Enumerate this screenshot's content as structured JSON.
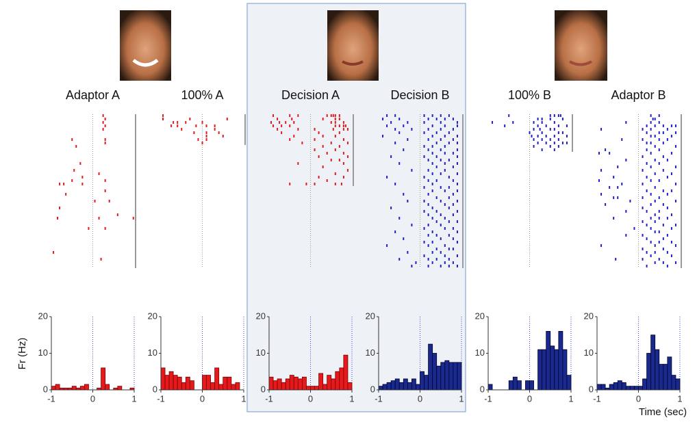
{
  "chart_data": {
    "type": "raster-histogram",
    "ylabel": "Fr (Hz)",
    "xlabel": "Time (sec)",
    "xlim": [
      -1,
      1
    ],
    "xticks": [
      -1,
      0,
      1
    ],
    "ylim": [
      0,
      20
    ],
    "yticks": [
      0,
      10,
      20
    ],
    "bins": [
      -1,
      -0.9,
      -0.8,
      -0.7,
      -0.6,
      -0.5,
      -0.4,
      -0.3,
      -0.2,
      -0.1,
      0,
      0.1,
      0.2,
      0.3,
      0.4,
      0.5,
      0.6,
      0.7,
      0.8,
      0.9,
      1
    ],
    "panels": [
      {
        "title": "Adaptor A",
        "color": "#e41a1c",
        "values": [
          1,
          1.5,
          0.5,
          0.5,
          0.5,
          1,
          0.5,
          1,
          1.5,
          0,
          0,
          0.5,
          6,
          1.5,
          0,
          0.5,
          1,
          0,
          0,
          0.5
        ],
        "raster": [
          [
            0.25
          ],
          [
            0.3
          ],
          [
            0.25
          ],
          [
            0.3
          ],
          [
            0.25
          ],
          [],
          [],
          [
            -0.5,
            0.3
          ],
          [
            0.3
          ],
          [
            -0.4
          ],
          [],
          [],
          [],
          [],
          [
            -0.3
          ],
          [],
          [
            -0.45
          ],
          [
            0.15
          ],
          [
            -0.25
          ],
          [
            -0.5,
            0.3
          ],
          [
            -0.8,
            -0.7,
            -0.25
          ],
          [],
          [
            0.3
          ],
          [
            -0.65
          ],
          [],
          [
            0.05,
            0.4
          ],
          [],
          [
            -0.8
          ],
          [],
          [
            0.6
          ],
          [
            -0.85,
            -0.85,
            0.15,
            0.98
          ],
          [],
          [],
          [
            -0.1,
            0.3
          ],
          [],
          [],
          [],
          [],
          [],
          [],
          [
            -0.95
          ],
          [],
          [
            0.2
          ],
          [],
          []
        ]
      },
      {
        "title": "100% A",
        "color": "#e41a1c",
        "values": [
          6,
          4,
          5,
          4,
          3.5,
          2,
          3.5,
          2.5,
          0,
          0,
          4,
          4,
          2,
          6,
          1.5,
          3.5,
          3.5,
          1.5,
          2,
          0
        ],
        "raster": [
          [
            -0.95
          ],
          [
            -0.95,
            -0.3,
            0.6
          ],
          [
            -0.7,
            -0.6,
            -0.4,
            0
          ],
          [
            -0.75,
            -0.6,
            -0.15,
            0.1,
            0.3
          ],
          [
            -0.5,
            0.3
          ],
          [
            -0.2,
            0.1,
            0.4
          ],
          [
            0.1,
            0.5
          ],
          [
            -0.1,
            0.1
          ],
          [
            0
          ]
        ]
      },
      {
        "title": "Decision A",
        "color": "#e41a1c",
        "values": [
          3.5,
          2.5,
          3,
          2,
          3,
          4,
          3.5,
          3,
          3.5,
          1,
          1,
          1,
          4.5,
          1.5,
          4,
          3,
          5,
          6,
          9.5,
          2
        ],
        "raster": [
          [
            -0.9,
            -0.5,
            -0.3,
            0.4,
            0.5,
            0.55,
            0.6,
            0.7
          ],
          [
            -0.8,
            -0.45,
            0.3,
            0.6,
            0.7
          ],
          [
            -0.95,
            -0.75,
            -0.6,
            -0.4,
            0.5,
            0.6,
            0.8
          ],
          [
            -0.9,
            -0.7,
            -0.5,
            0.6,
            0.7,
            0.8,
            0.85
          ],
          [
            -0.8,
            -0.3,
            0.1,
            0.55,
            0.8,
            0.9
          ],
          [
            -0.7,
            0.2,
            0.7
          ],
          [
            -0.4,
            0.3,
            0.6
          ],
          [
            -0.5,
            0.1,
            0.8
          ],
          [
            -0.2,
            0.5,
            0.9
          ],
          [
            0.3,
            0.7
          ],
          [
            0.1,
            0.6
          ],
          [
            0.4,
            0.8
          ],
          [
            0.2,
            0.9
          ],
          [
            0.5,
            0.7
          ],
          [
            -0.3,
            0.8
          ],
          [
            0.3
          ],
          [
            0.9
          ],
          [
            0.6
          ],
          [
            0.2,
            0.8
          ],
          [
            0.4
          ],
          [
            -0.5,
            -0.1,
            0.1,
            0.6,
            0.75
          ]
        ]
      },
      {
        "title": "Decision B",
        "color": "#1f1fd1",
        "values": [
          1,
          1.5,
          2,
          2.5,
          3,
          2,
          3,
          2,
          3,
          1.5,
          5,
          4,
          12.5,
          10,
          6.5,
          7.5,
          8,
          7.5,
          7.5,
          7.5
        ],
        "raster": [
          [
            -0.8,
            -0.6,
            0.1,
            0.3,
            0.5,
            0.7
          ],
          [
            -0.9,
            -0.5,
            0.2,
            0.4,
            0.6,
            0.8
          ],
          [
            -0.7,
            -0.3,
            0.1,
            0.5,
            0.9
          ],
          [
            -0.8,
            -0.4,
            0.3,
            0.6,
            0.9
          ],
          [
            -0.6,
            -0.2,
            0.2,
            0.5,
            0.8
          ],
          [
            -0.5,
            0.1,
            0.4,
            0.7
          ],
          [
            -0.9,
            0.3,
            0.6,
            0.9
          ],
          [
            -0.3,
            0.2,
            0.5,
            0.8
          ],
          [
            -0.6,
            0.4,
            0.7,
            0.9
          ],
          [
            0.1,
            0.3,
            0.6
          ],
          [
            -0.4,
            0.2,
            0.5,
            0.9
          ],
          [
            0.3,
            0.6,
            0.8
          ],
          [
            -0.7,
            0.1,
            0.4,
            0.9
          ],
          [
            0.2,
            0.5,
            0.7
          ],
          [
            -0.5,
            0.3,
            0.6,
            0.9
          ],
          [
            0.4,
            0.8
          ],
          [
            -0.2,
            0.2,
            0.6
          ],
          [
            0.3,
            0.5,
            0.9
          ],
          [
            -0.8,
            0.1,
            0.7
          ],
          [
            0.2,
            0.4,
            0.8
          ],
          [
            -0.6,
            0.3,
            0.9
          ],
          [
            0.1,
            0.5,
            0.7
          ],
          [
            0.3,
            0.6,
            0.9
          ],
          [
            -0.4,
            0.2,
            0.8
          ],
          [
            0.4,
            0.7
          ],
          [
            -0.3,
            0.1,
            0.5,
            0.9
          ],
          [
            0.2,
            0.6,
            0.8
          ],
          [
            -0.7,
            0.3,
            0.7
          ],
          [
            0.1,
            0.4,
            0.9
          ],
          [
            0.2,
            0.5,
            0.8
          ],
          [
            -0.5,
            0.3,
            0.6
          ],
          [
            0.4,
            0.7,
            0.9
          ],
          [
            -0.2,
            0.2,
            0.5
          ],
          [
            0.1,
            0.6,
            0.8
          ],
          [
            -0.6,
            0.3,
            0.9
          ],
          [
            0.2,
            0.4,
            0.7
          ],
          [
            -0.4,
            0.5,
            0.8
          ],
          [
            0.1,
            0.3,
            0.9
          ],
          [
            -0.8,
            0.2,
            0.6
          ],
          [
            0.4,
            0.7,
            0.8
          ],
          [
            -0.3,
            0.3,
            0.5
          ],
          [
            0.1,
            0.6,
            0.9
          ],
          [
            -0.5,
            0.2,
            0.4,
            0.7
          ],
          [
            -0.1,
            0.3,
            0.6,
            0.8
          ],
          [
            -0.2,
            0.2,
            0.5,
            0.7,
            0.9
          ]
        ]
      },
      {
        "title": "100% B",
        "color": "#1f1fd1",
        "values": [
          1.5,
          0,
          0,
          0,
          0,
          2.5,
          3.5,
          2.5,
          0,
          2.5,
          2.5,
          0,
          11,
          11,
          16,
          12,
          11,
          16,
          11,
          4
        ],
        "raster": [
          [
            -0.5,
            0.5,
            0.6,
            0.7,
            0.75
          ],
          [
            0.2,
            0.3,
            0.5,
            0.8
          ],
          [
            -0.9,
            -0.4,
            0.1,
            0.3,
            0.6
          ],
          [
            -0.6,
            0.2,
            0.4,
            0.7,
            0.9
          ],
          [
            0.1,
            0.25,
            0.5,
            0.6
          ],
          [
            0,
            0.3,
            0.7,
            0.8
          ],
          [
            0.05,
            0.2,
            0.4,
            0.6,
            0.9
          ],
          [
            0.1,
            0.3,
            0.5,
            0.7
          ],
          [
            0.2,
            0.4,
            0.6,
            0.8,
            0.9
          ],
          [
            0.1,
            0.5,
            0.7
          ],
          [
            0.3,
            0.6
          ]
        ]
      },
      {
        "title": "Adaptor B",
        "color": "#1f1fd1",
        "values": [
          1.5,
          1.5,
          0.5,
          1.5,
          2,
          2.5,
          2,
          1,
          1,
          1,
          1,
          3,
          10,
          15,
          11,
          7,
          7,
          9,
          4,
          3
        ],
        "raster": [
          [
            0.3,
            0.5
          ],
          [
            0.35,
            0.4
          ],
          [
            -0.3,
            0.3,
            0.5
          ],
          [
            0.2,
            0.4,
            0.6,
            0.8,
            0.9
          ],
          [
            -0.9,
            0.1,
            0.3,
            0.7
          ],
          [
            0.2,
            0.5,
            0.6,
            0.9
          ],
          [
            0.3,
            0.4,
            0.8
          ],
          [
            -0.4,
            0.1,
            0.5,
            0.7
          ],
          [
            0.2,
            0.3,
            0.6
          ],
          [
            0.4,
            0.9
          ],
          [
            -0.8,
            0.2,
            0.5
          ],
          [
            -0.95,
            -0.7,
            0.3,
            0.8
          ],
          [
            0.1,
            0.6
          ],
          [
            -0.3,
            0.4,
            0.7
          ],
          [
            0.2,
            0.5
          ],
          [
            -0.5,
            0.3,
            0.9
          ],
          [
            -0.9,
            0.1,
            0.6
          ],
          [
            0.4,
            0.8
          ],
          [
            -0.6,
            0.2,
            0.7
          ],
          [
            -0.95,
            0.3,
            0.5
          ],
          [
            -0.4,
            0.1,
            0.9
          ],
          [
            -0.7,
            -0.5,
            0.4
          ],
          [
            0.2,
            0.6,
            0.8
          ],
          [
            -0.9,
            0.3,
            0.7
          ],
          [
            -0.6,
            -0.5,
            0.1,
            0.5
          ],
          [
            -0.2,
            0.4,
            0.9
          ],
          [
            -0.8,
            0.3,
            0.6
          ],
          [
            0.1,
            0.7
          ],
          [
            -0.3,
            0.2,
            0.5
          ],
          [
            0.4,
            0.8
          ],
          [
            -0.6,
            0.3,
            0.5,
            0.7
          ],
          [
            0.1,
            0.4
          ],
          [
            0.2,
            0.6,
            0.9
          ],
          [
            -0.1,
            0.3,
            0.8
          ],
          [
            0.4,
            0.5
          ],
          [
            -0.3,
            0.1,
            0.7
          ],
          [
            0.2,
            0.6
          ],
          [
            0.3,
            0.5,
            0.8
          ],
          [
            -0.9,
            0.4,
            0.9
          ],
          [
            0.1,
            0.6
          ],
          [
            0.2,
            0.4,
            0.7
          ],
          [
            0.3,
            0.8
          ],
          [
            -0.55,
            0.1,
            0.5
          ],
          [
            0.4,
            0.6,
            0.9
          ],
          [
            0.2,
            0.7
          ]
        ]
      }
    ]
  }
}
